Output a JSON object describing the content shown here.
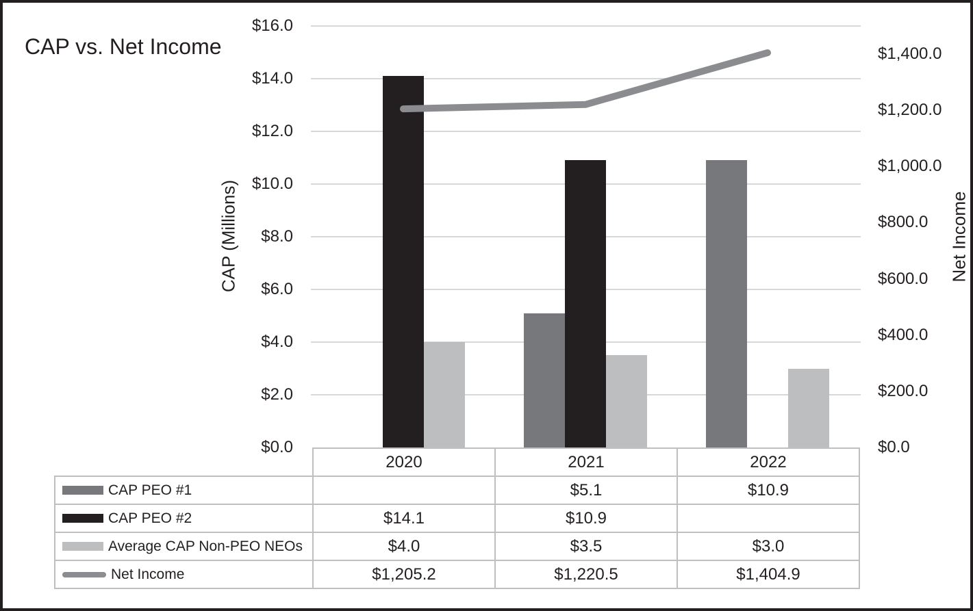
{
  "title": "CAP vs. Net Income",
  "chart_data": {
    "type": "bar",
    "subtype": "grouped bars with secondary-axis line and data table legend",
    "categories": [
      "2020",
      "2021",
      "2022"
    ],
    "series": [
      {
        "name": "CAP PEO #1",
        "kind": "bar",
        "axis": "left",
        "color": "#77787B",
        "values": [
          null,
          5.1,
          10.9
        ],
        "table_labels": [
          "",
          "$5.1",
          "$10.9"
        ]
      },
      {
        "name": "CAP PEO #2",
        "kind": "bar",
        "axis": "left",
        "color": "#231F20",
        "values": [
          14.1,
          10.9,
          null
        ],
        "table_labels": [
          "$14.1",
          "$10.9",
          ""
        ]
      },
      {
        "name": "Average CAP Non-PEO NEOs",
        "kind": "bar",
        "axis": "left",
        "color": "#BCBEC0",
        "values": [
          4.0,
          3.5,
          3.0
        ],
        "table_labels": [
          "$4.0",
          "$3.5",
          "$3.0"
        ]
      },
      {
        "name": "Net Income",
        "kind": "line",
        "axis": "right",
        "color": "#8A8C8F",
        "values": [
          1205.2,
          1220.5,
          1404.9
        ],
        "table_labels": [
          "$1,205.2",
          "$1,220.5",
          "$1,404.9"
        ]
      }
    ],
    "left_axis": {
      "title": "CAP (Millions)",
      "min": 0,
      "max": 16,
      "step": 2,
      "tick_labels": [
        "$0.0",
        "$2.0",
        "$4.0",
        "$6.0",
        "$8.0",
        "$10.0",
        "$12.0",
        "$14.0",
        "$16.0"
      ]
    },
    "right_axis": {
      "title": "Net Income",
      "min": 0,
      "max": 1500,
      "step": 200,
      "tick_labels": [
        "$0.0",
        "$200.0",
        "$400.0",
        "$600.0",
        "$800.0",
        "$1,000.0",
        "$1,200.0",
        "$1,400.0"
      ]
    },
    "grid": true,
    "legend_position": "table-left-column"
  },
  "colors": {
    "grid": "#D8D8D8",
    "table_border": "#BFBFBF",
    "text": "#231F20",
    "background": "#FFFFFF"
  }
}
